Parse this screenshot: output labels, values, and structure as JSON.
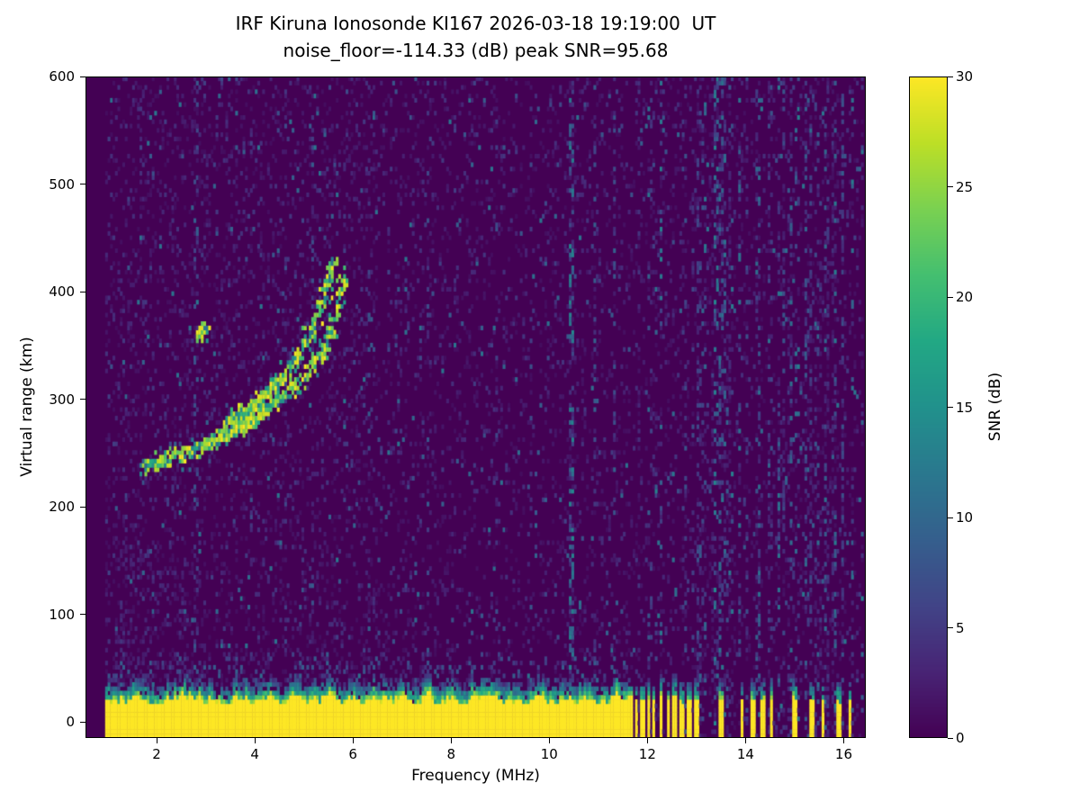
{
  "page": {
    "background": "#ffffff",
    "text_color": "#000000",
    "frame_color": "#000000"
  },
  "chart_data": {
    "type": "heatmap",
    "title": "IRF Kiruna Ionosonde KI167 2026-03-18 19:19:00  UT",
    "subtitle": "noise_floor=-114.33 (dB) peak SNR=95.68",
    "xlabel": "Frequency (MHz)",
    "ylabel": "Virtual range (km)",
    "xlim": [
      0.55,
      16.45
    ],
    "ylim": [
      -15,
      600
    ],
    "x_ticks": [
      2,
      4,
      6,
      8,
      10,
      12,
      14,
      16
    ],
    "y_ticks": [
      0,
      100,
      200,
      300,
      400,
      500,
      600
    ],
    "grid": false,
    "noise_floor_db": -114.33,
    "peak_snr_db": 95.68,
    "colorbar": {
      "label": "SNR (dB)",
      "min": 0,
      "max": 30,
      "ticks": [
        0,
        5,
        10,
        15,
        20,
        25,
        30
      ],
      "position": "right"
    },
    "colormap": {
      "name": "viridis",
      "stops": [
        "#440154",
        "#482475",
        "#414487",
        "#355f8d",
        "#2a788e",
        "#21918c",
        "#22a884",
        "#44bf70",
        "#7ad151",
        "#bddf26",
        "#fde725"
      ]
    },
    "sweep": {
      "f_min": 0.95,
      "f_max": 16.42
    },
    "ground_clutter": {
      "continuous_max_freq": 11.6,
      "top_km_base": 15,
      "top_km_var": 16,
      "fringe_km": 18,
      "columns": [
        [
          11.62,
          11.68
        ],
        [
          11.74,
          11.8
        ],
        [
          11.87,
          11.93
        ],
        [
          11.99,
          12.05
        ],
        [
          12.11,
          12.17
        ],
        [
          12.24,
          12.31
        ],
        [
          12.38,
          12.45
        ],
        [
          12.52,
          12.59
        ],
        [
          12.67,
          12.74
        ],
        [
          12.82,
          12.89
        ],
        [
          12.97,
          13.04
        ],
        [
          13.47,
          13.55
        ],
        [
          13.89,
          13.97
        ],
        [
          14.11,
          14.18
        ],
        [
          14.31,
          14.39
        ],
        [
          14.49,
          14.56
        ],
        [
          14.97,
          15.05
        ],
        [
          15.31,
          15.39
        ],
        [
          15.53,
          15.6
        ],
        [
          15.87,
          15.95
        ],
        [
          16.09,
          16.17
        ]
      ]
    },
    "rfi_band": {
      "f_min": 11.6,
      "f_max": 16.42,
      "stripe_prob": 0.5
    },
    "rfi_stripes": [
      {
        "f": 2.82,
        "w": 0.05,
        "density": 0.2,
        "max": 8
      },
      {
        "f": 3.92,
        "w": 0.04,
        "density": 0.15,
        "max": 7
      },
      {
        "f": 4.62,
        "w": 0.04,
        "density": 0.15,
        "max": 7
      },
      {
        "f": 5.18,
        "w": 0.04,
        "density": 0.18,
        "max": 8
      },
      {
        "f": 6.32,
        "w": 0.04,
        "density": 0.18,
        "max": 8
      },
      {
        "f": 7.52,
        "w": 0.04,
        "density": 0.15,
        "max": 8
      },
      {
        "f": 8.92,
        "w": 0.04,
        "density": 0.12,
        "max": 7
      },
      {
        "f": 9.62,
        "w": 0.04,
        "density": 0.12,
        "max": 7
      },
      {
        "f": 10.45,
        "w": 0.05,
        "density": 0.5,
        "max": 13
      },
      {
        "f": 10.92,
        "w": 0.04,
        "density": 0.2,
        "max": 9
      },
      {
        "f": 11.32,
        "w": 0.04,
        "density": 0.25,
        "max": 9
      },
      {
        "f": 13.52,
        "w": 0.05,
        "density": 0.35,
        "max": 11
      },
      {
        "f": 14.92,
        "w": 0.04,
        "density": 0.3,
        "max": 10
      },
      {
        "f": 15.62,
        "w": 0.04,
        "density": 0.3,
        "max": 10
      }
    ],
    "noise": {
      "speckle_p": 0.11,
      "low_freq_extra": 0.05,
      "bright_p": 0.015
    },
    "echo_trace": {
      "branches": [
        [
          [
            1.75,
            236
          ],
          [
            1.95,
            239
          ],
          [
            2.15,
            242
          ],
          [
            2.35,
            246
          ],
          [
            2.55,
            249
          ],
          [
            2.75,
            252
          ],
          [
            2.95,
            256
          ],
          [
            3.15,
            260
          ],
          [
            3.35,
            264
          ],
          [
            3.55,
            269
          ],
          [
            3.75,
            274
          ],
          [
            3.95,
            280
          ],
          [
            4.15,
            286
          ],
          [
            4.35,
            293
          ],
          [
            4.55,
            300
          ],
          [
            4.75,
            308
          ],
          [
            4.95,
            317
          ],
          [
            5.1,
            326
          ],
          [
            5.25,
            336
          ],
          [
            5.4,
            349
          ],
          [
            5.55,
            365
          ],
          [
            5.65,
            382
          ],
          [
            5.75,
            401
          ],
          [
            5.82,
            420
          ]
        ],
        [
          [
            3.35,
            274
          ],
          [
            3.55,
            280
          ],
          [
            3.75,
            287
          ],
          [
            3.95,
            294
          ],
          [
            4.15,
            302
          ],
          [
            4.35,
            311
          ],
          [
            4.55,
            321
          ],
          [
            4.75,
            332
          ],
          [
            4.9,
            343
          ],
          [
            5.05,
            355
          ],
          [
            5.2,
            369
          ],
          [
            5.32,
            384
          ],
          [
            5.43,
            400
          ],
          [
            5.52,
            416
          ],
          [
            5.59,
            430
          ]
        ]
      ],
      "blob": [
        2.88,
        362
      ]
    },
    "seed": 20260318
  }
}
